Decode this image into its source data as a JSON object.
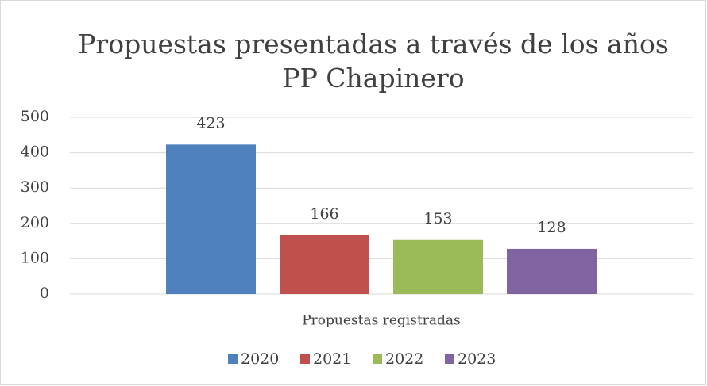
{
  "chart_data": {
    "type": "bar",
    "title": "Propuestas presentadas a través de los años",
    "subtitle": "PP Chapinero",
    "categories": [
      "Propuestas registradas"
    ],
    "series": [
      {
        "name": "2020",
        "color": "#4f81bd",
        "values": [
          423
        ]
      },
      {
        "name": "2021",
        "color": "#c0504d",
        "values": [
          166
        ]
      },
      {
        "name": "2022",
        "color": "#9bbb59",
        "values": [
          153
        ]
      },
      {
        "name": "2023",
        "color": "#8064a2",
        "values": [
          128
        ]
      }
    ],
    "ylim": [
      0,
      500
    ],
    "yticks": [
      0,
      100,
      200,
      300,
      400,
      500
    ],
    "grid": true,
    "legend": "bottom"
  }
}
